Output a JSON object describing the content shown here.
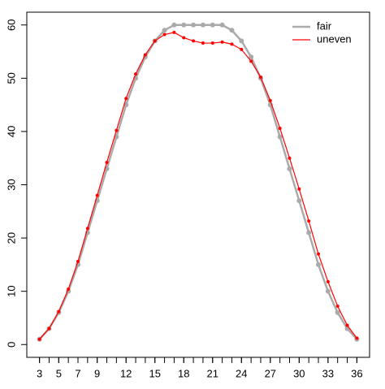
{
  "chart_data": {
    "type": "line",
    "x": [
      3,
      4,
      5,
      6,
      7,
      8,
      9,
      10,
      11,
      12,
      13,
      14,
      15,
      16,
      17,
      18,
      19,
      20,
      21,
      22,
      23,
      24,
      25,
      26,
      27,
      28,
      29,
      30,
      31,
      32,
      33,
      34,
      35,
      36
    ],
    "series": [
      {
        "name": "fair",
        "color": "#aaaaaa",
        "values": [
          1,
          3,
          6,
          10,
          15,
          21,
          27,
          33,
          39,
          45,
          50,
          54,
          57,
          59,
          60,
          60,
          60,
          60,
          60,
          60,
          59,
          57,
          54,
          50,
          45,
          39,
          33,
          27,
          21,
          15,
          10,
          6,
          3,
          1
        ]
      },
      {
        "name": "uneven",
        "color": "#ff0000",
        "values": [
          1,
          3,
          6.2,
          10.4,
          15.6,
          21.8,
          28,
          34.2,
          40.2,
          46.2,
          50.8,
          54.4,
          57,
          58.2,
          58.6,
          57.6,
          57,
          56.6,
          56.6,
          56.8,
          56.4,
          55.4,
          53.2,
          50.2,
          45.8,
          40.6,
          35,
          29.2,
          23.2,
          17,
          11.8,
          7.2,
          3.6,
          1.2
        ]
      }
    ],
    "xlim": [
      1.68,
      37.32
    ],
    "ylim": [
      -2.4,
      62.4
    ],
    "xticks": [
      3,
      5,
      7,
      9,
      12,
      15,
      18,
      21,
      24,
      27,
      30,
      33,
      36
    ],
    "yticks": [
      0,
      10,
      20,
      30,
      40,
      50,
      60
    ],
    "legend": "top-right"
  }
}
